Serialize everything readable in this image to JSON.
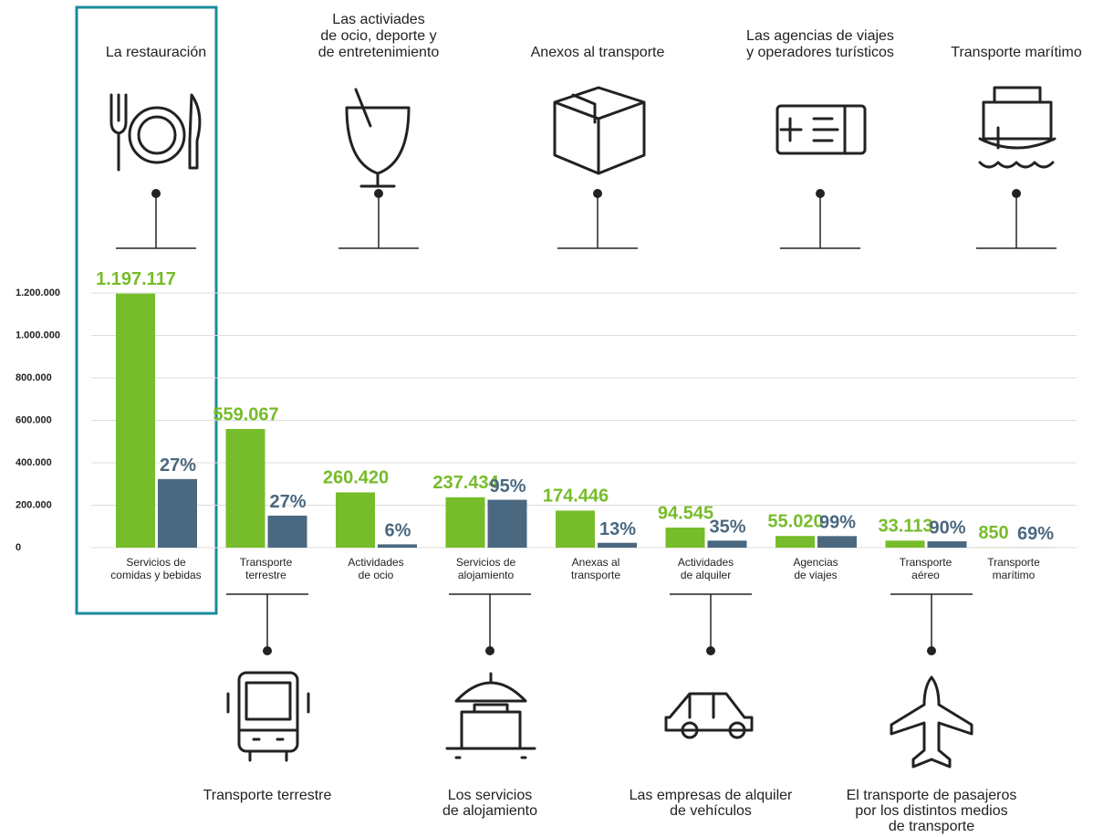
{
  "chart_data": {
    "type": "bar",
    "categories": [
      [
        "Servicios de",
        "comidas y bebidas"
      ],
      [
        "Transporte",
        "terrestre"
      ],
      [
        "Actividades",
        "de ocio"
      ],
      [
        "Servicios de",
        "alojamiento"
      ],
      [
        "Anexas al",
        "transporte"
      ],
      [
        "Actividades",
        "de alquiler"
      ],
      [
        "Agencias",
        "de viajes"
      ],
      [
        "Transporte",
        "aéreo"
      ],
      [
        "Transporte",
        "marítimo"
      ]
    ],
    "series": [
      {
        "color": "#77bc2a",
        "values": [
          1197117,
          559067,
          260420,
          237434,
          174446,
          94545,
          55020,
          33113,
          850
        ],
        "value_labels": [
          "1.197.117",
          "559.067",
          "260.420",
          "237.434",
          "174.446",
          "94.545",
          "55.020",
          "33.113",
          "850"
        ]
      },
      {
        "color": "#4a6880",
        "values": [
          27,
          27,
          6,
          95,
          13,
          35,
          99,
          90,
          69
        ],
        "value_labels": [
          "27%",
          "27%",
          "6%",
          "95%",
          "13%",
          "35%",
          "99%",
          "90%",
          "69%"
        ]
      }
    ],
    "ylim": [
      0,
      1200000
    ],
    "yticks": [
      0,
      {
        "value": 200000,
        "label": "200.000"
      },
      {
        "value": 400000,
        "label": "400.000"
      },
      {
        "value": 600000,
        "label": "600.000"
      },
      {
        "value": 800000,
        "label": "800.000"
      },
      {
        "value": 1000000,
        "label": "1.000.000"
      },
      {
        "value": 1200000,
        "label": "1.200.000"
      }
    ],
    "grid": true,
    "top_icons": [
      [
        "La restauración"
      ],
      [
        "Las activiades",
        "de ocio, deporte y",
        "de entretenimiento"
      ],
      [
        "Anexos al transporte"
      ],
      [
        "Las agencias de viajes",
        "y operadores turísticos"
      ],
      [
        "Transporte marítimo"
      ]
    ],
    "bottom_icons": [
      [
        "Transporte terrestre"
      ],
      [
        "Los servicios",
        "de alojamiento"
      ],
      [
        "Las empresas de alquiler",
        "de vehículos"
      ],
      [
        "El transporte de pasajeros",
        "por los distintos medios",
        "de transporte"
      ]
    ]
  }
}
